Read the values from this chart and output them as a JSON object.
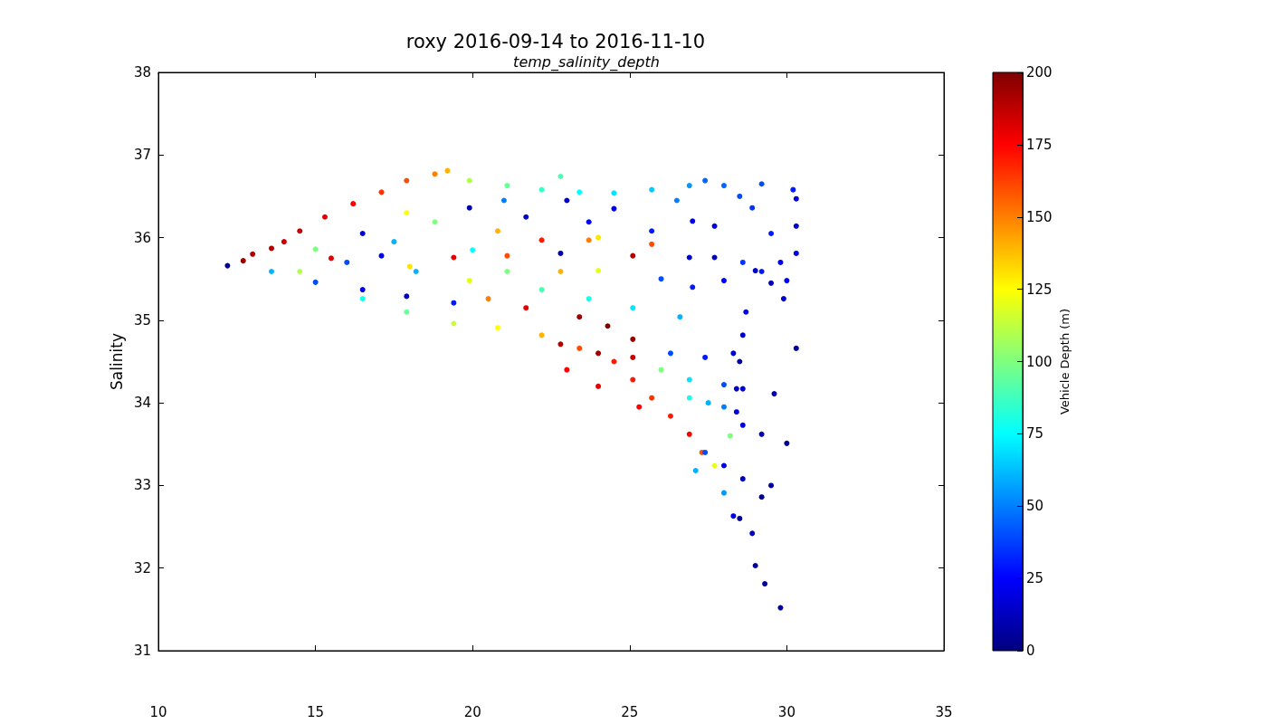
{
  "chart_data": {
    "type": "scatter",
    "title": "roxy 2016-09-14 to 2016-11-10",
    "subtitle": "temp_salinity_depth",
    "ylabel": "Salinity",
    "clabel": "Vehicle Depth (m)",
    "marker": "circle",
    "xlim": [
      10,
      35
    ],
    "xticks": [
      10,
      15,
      20,
      25,
      30,
      35
    ],
    "ylim": [
      31,
      38
    ],
    "yticks": [
      31,
      32,
      33,
      34,
      35,
      36,
      37,
      38
    ],
    "clim": [
      0,
      200
    ],
    "cticks": [
      0,
      25,
      50,
      75,
      100,
      125,
      150,
      175,
      200
    ],
    "x": [
      12.2,
      12.7,
      13.0,
      13.6,
      14.0,
      14.5,
      15.3,
      16.2,
      17.1,
      17.9,
      18.8,
      19.2,
      19.9,
      21.1,
      22.2,
      22.8,
      23.4,
      24.5,
      25.7,
      26.9,
      27.4,
      28.0,
      29.2,
      30.2,
      30.3,
      30.3,
      30.3,
      30.0,
      29.9,
      28.6,
      29.2,
      28.0,
      28.9,
      27.7,
      15.0,
      16.5,
      17.1,
      19.4,
      21.1,
      22.2,
      22.8,
      25.1,
      26.9,
      27.7,
      19.9,
      21.7,
      23.7,
      25.7,
      17.9,
      18.8,
      20.8,
      23.7,
      13.6,
      15.0,
      16.5,
      17.9,
      19.4,
      14.5,
      16.5,
      17.9,
      19.4,
      20.8,
      22.2,
      23.4,
      24.5,
      25.1,
      25.7,
      26.3,
      26.9,
      27.3,
      27.7,
      23.4,
      24.3,
      25.1,
      22.8,
      24.0,
      25.1,
      21.7,
      20.5,
      21.1,
      22.2,
      23.7,
      25.1,
      26.6,
      22.8,
      19.9,
      18.2,
      26.3,
      27.4,
      28.3,
      26.9,
      28.0,
      26.9,
      28.0,
      28.6,
      29.2,
      28.6,
      28.7,
      28.6,
      28.5,
      28.4,
      28.4,
      27.4,
      28.0,
      28.6,
      29.2,
      28.0,
      28.3,
      28.9,
      29.0,
      29.3,
      29.8,
      27.1,
      30.0,
      29.6,
      30.3,
      29.0,
      29.5,
      25.7,
      24.0,
      18.0,
      20.0,
      23.0,
      21.0,
      24.5,
      26.5,
      28.5,
      27.0,
      17.5,
      15.5,
      16.0,
      24.0,
      26.0,
      27.0,
      23.0,
      24.0,
      25.3,
      26.0,
      27.5,
      28.2,
      29.5,
      28.5,
      29.5,
      29.8
    ],
    "values": [
      35.66,
      35.72,
      35.8,
      35.87,
      35.95,
      36.08,
      36.25,
      36.41,
      36.55,
      36.69,
      36.77,
      36.81,
      36.69,
      36.63,
      36.58,
      36.74,
      36.55,
      36.54,
      36.58,
      36.63,
      36.69,
      36.63,
      36.65,
      36.58,
      36.47,
      36.14,
      35.81,
      35.48,
      35.26,
      35.7,
      35.59,
      35.48,
      36.36,
      36.14,
      35.86,
      36.05,
      35.78,
      35.76,
      35.78,
      35.97,
      35.81,
      35.78,
      35.76,
      35.76,
      36.36,
      36.25,
      36.19,
      36.08,
      36.3,
      36.19,
      36.08,
      35.97,
      35.59,
      35.46,
      35.37,
      35.29,
      35.21,
      35.59,
      35.26,
      35.1,
      34.96,
      34.91,
      34.82,
      34.66,
      34.5,
      34.28,
      34.06,
      33.84,
      33.62,
      33.4,
      33.24,
      35.04,
      34.93,
      34.77,
      34.71,
      34.6,
      34.55,
      35.15,
      35.26,
      35.59,
      35.37,
      35.26,
      35.15,
      35.04,
      35.59,
      35.48,
      35.59,
      34.6,
      34.55,
      34.6,
      34.28,
      34.22,
      34.06,
      33.95,
      33.73,
      33.62,
      34.17,
      35.1,
      34.82,
      34.5,
      34.17,
      33.89,
      33.4,
      33.24,
      33.08,
      32.86,
      32.91,
      32.63,
      32.42,
      32.03,
      31.81,
      31.52,
      33.18,
      33.51,
      34.11,
      34.66,
      35.6,
      35.45,
      35.92,
      36.0,
      35.65,
      35.85,
      36.45,
      36.45,
      36.35,
      36.45,
      36.5,
      36.2,
      35.95,
      35.75,
      35.7,
      35.6,
      35.5,
      35.4,
      34.4,
      34.2,
      33.95,
      34.4,
      34.0,
      33.6,
      33.0,
      32.6,
      36.05,
      35.7
    ],
    "cvalues": [
      5,
      195,
      190,
      190,
      185,
      185,
      180,
      175,
      165,
      160,
      150,
      140,
      110,
      95,
      85,
      90,
      75,
      70,
      65,
      55,
      45,
      45,
      40,
      30,
      20,
      15,
      20,
      25,
      15,
      35,
      30,
      25,
      35,
      20,
      100,
      15,
      20,
      180,
      160,
      170,
      10,
      190,
      15,
      10,
      10,
      15,
      25,
      30,
      125,
      100,
      140,
      150,
      60,
      40,
      20,
      15,
      30,
      110,
      80,
      95,
      115,
      125,
      140,
      160,
      170,
      170,
      165,
      170,
      175,
      160,
      120,
      195,
      200,
      195,
      190,
      195,
      185,
      180,
      150,
      100,
      90,
      80,
      70,
      60,
      140,
      120,
      60,
      40,
      30,
      15,
      70,
      40,
      80,
      50,
      20,
      10,
      15,
      20,
      15,
      10,
      15,
      20,
      40,
      20,
      10,
      5,
      55,
      20,
      15,
      5,
      5,
      5,
      60,
      5,
      10,
      5,
      15,
      10,
      160,
      130,
      130,
      75,
      15,
      50,
      20,
      50,
      40,
      20,
      60,
      180,
      40,
      120,
      40,
      30,
      175,
      180,
      175,
      100,
      60,
      100,
      5,
      5,
      30,
      20
    ]
  }
}
